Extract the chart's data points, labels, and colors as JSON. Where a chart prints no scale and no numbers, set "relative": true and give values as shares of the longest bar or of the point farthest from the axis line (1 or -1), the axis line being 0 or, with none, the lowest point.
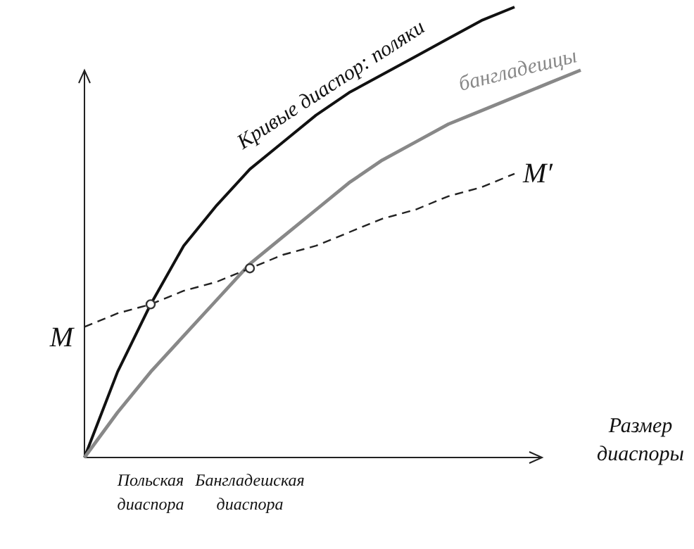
{
  "chart_data": {
    "type": "line",
    "relative": true,
    "xlabel": "Размер диаспоры",
    "legend": false,
    "marker": "none",
    "categories": [
      null,
      null,
      "Польская диаспора",
      null,
      null,
      "Бангладешская диаспора",
      null,
      null,
      null,
      null,
      null,
      null,
      null,
      null,
      null,
      null
    ],
    "series": [
      {
        "name": "Кривые диаспор: поляки",
        "color": "#111111",
        "values": [
          0,
          0.19,
          0.34,
          0.47,
          0.56,
          0.64,
          0.7,
          0.76,
          0.81,
          0.85,
          0.89,
          0.93,
          0.97,
          1,
          null,
          null
        ]
      },
      {
        "name": "бангладешцы",
        "color": "#888888",
        "values": [
          0,
          0.1,
          0.19,
          0.27,
          0.35,
          0.43,
          0.49,
          0.55,
          0.61,
          0.66,
          0.7,
          0.74,
          0.77,
          0.8,
          0.83,
          0.86
        ]
      },
      {
        "name": "M′",
        "color": "#222222",
        "line_style": "dashed",
        "values": [
          0.29,
          0.32,
          0.34,
          0.37,
          0.39,
          0.42,
          0.45,
          0.47,
          0.5,
          0.53,
          0.55,
          0.58,
          0.6,
          0.63,
          null,
          null
        ]
      },
      {
        "type": "scatter",
        "marker": "circle",
        "color": "#333333",
        "values": [
          null,
          null,
          0.34,
          null,
          null,
          0.42,
          null,
          null,
          null,
          null,
          null,
          null,
          null,
          null,
          null,
          null
        ]
      }
    ],
    "annotations": [
      "M"
    ]
  }
}
